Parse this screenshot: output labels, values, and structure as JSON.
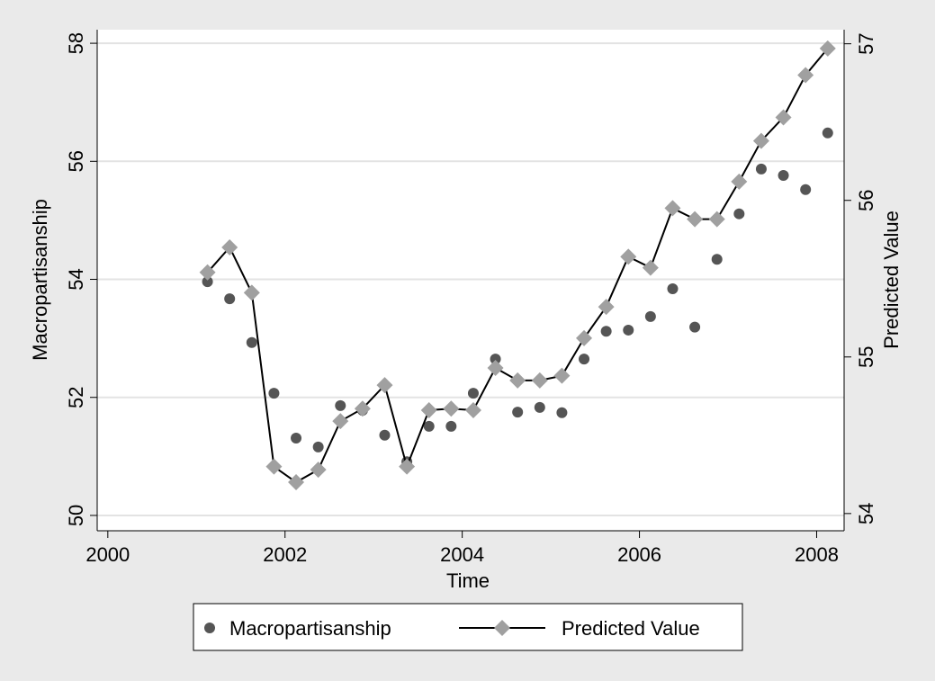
{
  "chart_data": {
    "type": "line",
    "x_label": "Time",
    "y_label": "Macropartisanship",
    "y2_label": "Predicted Value",
    "x": [
      2001.125,
      2001.375,
      2001.625,
      2001.875,
      2002.125,
      2002.375,
      2002.625,
      2002.875,
      2003.125,
      2003.375,
      2003.625,
      2003.875,
      2004.125,
      2004.375,
      2004.625,
      2004.875,
      2005.125,
      2005.375,
      2005.625,
      2005.875,
      2006.125,
      2006.375,
      2006.625,
      2006.875,
      2007.125,
      2007.375,
      2007.625,
      2007.875,
      2008.125
    ],
    "series": [
      {
        "name": "Macropartisanship",
        "color": "#555555",
        "style": "markers",
        "marker": "circle",
        "axis": "y",
        "values": [
          53.96,
          53.67,
          52.93,
          52.07,
          51.31,
          51.16,
          51.86,
          51.78,
          51.36,
          50.91,
          51.51,
          51.51,
          52.07,
          52.65,
          51.75,
          51.83,
          51.74,
          52.65,
          53.12,
          53.14,
          53.37,
          53.84,
          53.19,
          54.34,
          55.11,
          55.87,
          55.76,
          55.52,
          56.48
        ]
      },
      {
        "name": "Predicted Value",
        "color": "#a0a0a0",
        "line_color": "#000000",
        "style": "line-markers",
        "marker": "diamond",
        "axis": "y2",
        "values": [
          55.54,
          55.7,
          55.41,
          54.3,
          54.2,
          54.28,
          54.59,
          54.67,
          54.82,
          54.3,
          54.66,
          54.67,
          54.66,
          54.93,
          54.85,
          54.85,
          54.88,
          55.12,
          55.32,
          55.64,
          55.57,
          55.95,
          55.88,
          55.88,
          56.12,
          56.38,
          56.53,
          56.8,
          56.97
        ]
      }
    ],
    "xlim": [
      1999.88,
      2008.31
    ],
    "xticks": [
      2000,
      2002,
      2004,
      2006,
      2008
    ],
    "ylim": [
      49.74,
      58.23
    ],
    "yticks": [
      50,
      52,
      54,
      56,
      58
    ],
    "y2lim": [
      53.89,
      57.09
    ],
    "y2ticks": [
      54,
      55,
      56,
      57
    ],
    "grid": true,
    "legend_position": "bottom"
  }
}
